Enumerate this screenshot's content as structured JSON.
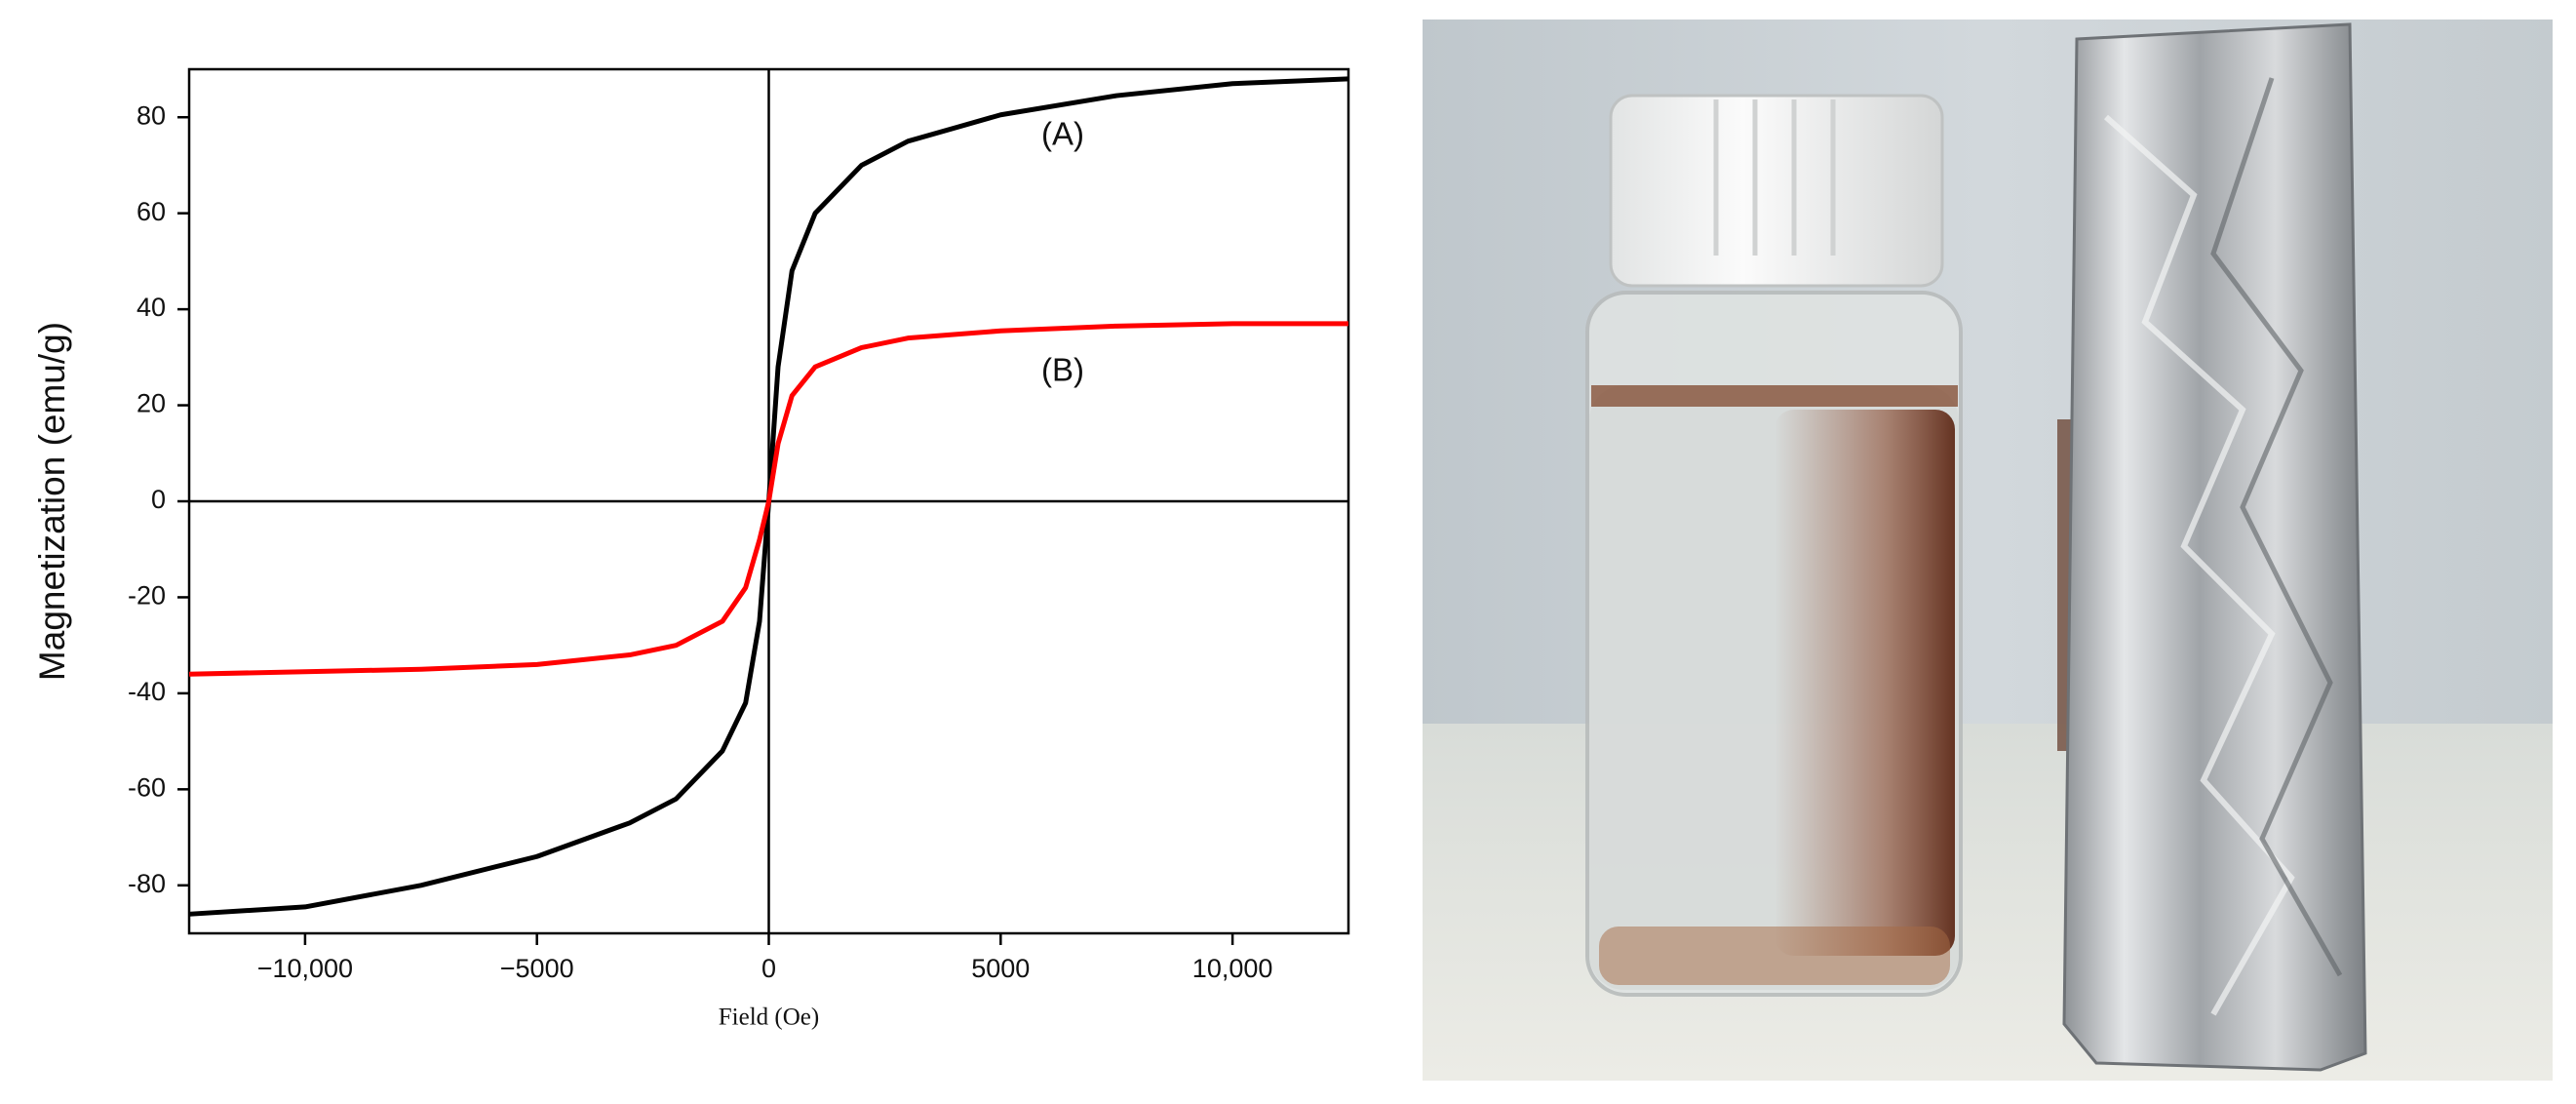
{
  "chart_data": {
    "type": "line",
    "xlabel": "Field (Oe)",
    "ylabel": "Magnetization (emu/g)",
    "x": [
      -12500,
      -10000,
      -7500,
      -5000,
      -3000,
      -2000,
      -1000,
      -500,
      -200,
      0,
      200,
      500,
      1000,
      2000,
      3000,
      5000,
      7500,
      10000,
      12500
    ],
    "series": [
      {
        "name": "(A)",
        "color": "#000000",
        "values": [
          -86,
          -84.5,
          -80,
          -74,
          -67,
          -62,
          -52,
          -42,
          -25,
          0,
          28,
          48,
          60,
          70,
          75,
          80.5,
          84.5,
          87,
          88
        ]
      },
      {
        "name": "(B)",
        "color": "#ff0000",
        "values": [
          -36,
          -35.5,
          -35,
          -34,
          -32,
          -30,
          -25,
          -18,
          -8,
          0,
          12,
          22,
          28,
          32,
          34,
          35.5,
          36.5,
          37,
          37
        ]
      }
    ],
    "xlim": [
      -12500,
      12500
    ],
    "ylim": [
      -90,
      90
    ],
    "xticks": [
      {
        "value": -10000,
        "label": "−10,000"
      },
      {
        "value": -5000,
        "label": "−5000"
      },
      0,
      5000,
      {
        "value": 10000,
        "label": "10,000"
      }
    ],
    "yticks": [
      -80,
      -60,
      -40,
      -20,
      0,
      20,
      40,
      60,
      80
    ]
  }
}
